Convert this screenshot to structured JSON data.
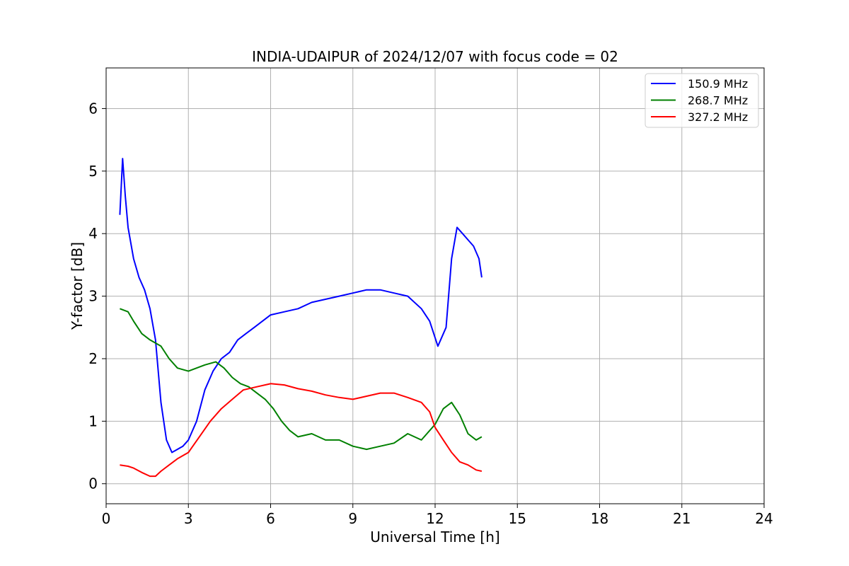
{
  "chart_data": {
    "type": "line",
    "title": "INDIA-UDAIPUR of 2024/12/07 with focus code = 02",
    "xlabel": "Universal Time [h]",
    "ylabel": "Y-factor [dB]",
    "xlim": [
      0,
      24
    ],
    "ylim": [
      -0.32,
      6.65
    ],
    "xticks": [
      "0",
      "3",
      "6",
      "9",
      "12",
      "15",
      "18",
      "21",
      "24"
    ],
    "yticks": [
      "0",
      "1",
      "2",
      "3",
      "4",
      "5",
      "6"
    ],
    "grid": true,
    "legend_position": "top-right",
    "series": [
      {
        "name": "150.9 MHz",
        "color": "#0000ff",
        "x": [
          0.5,
          0.6,
          0.7,
          0.8,
          1.0,
          1.2,
          1.4,
          1.6,
          1.8,
          2.0,
          2.2,
          2.4,
          2.6,
          2.8,
          3.0,
          3.3,
          3.6,
          3.9,
          4.2,
          4.5,
          4.8,
          5.1,
          5.4,
          5.7,
          6.0,
          6.5,
          7.0,
          7.5,
          8.0,
          8.5,
          9.0,
          9.5,
          10.0,
          10.5,
          11.0,
          11.5,
          11.8,
          12.1,
          12.4,
          12.6,
          12.8,
          13.0,
          13.2,
          13.4,
          13.6,
          13.7
        ],
        "y": [
          4.3,
          5.2,
          4.6,
          4.1,
          3.6,
          3.3,
          3.1,
          2.8,
          2.3,
          1.3,
          0.7,
          0.5,
          0.55,
          0.6,
          0.7,
          1.0,
          1.5,
          1.8,
          2.0,
          2.1,
          2.3,
          2.4,
          2.5,
          2.6,
          2.7,
          2.75,
          2.8,
          2.9,
          2.95,
          3.0,
          3.05,
          3.1,
          3.1,
          3.05,
          3.0,
          2.8,
          2.6,
          2.2,
          2.5,
          3.6,
          4.1,
          4.0,
          3.9,
          3.8,
          3.6,
          3.3
        ]
      },
      {
        "name": "268.7 MHz",
        "color": "#008000",
        "x": [
          0.5,
          0.8,
          1.0,
          1.3,
          1.6,
          2.0,
          2.3,
          2.6,
          3.0,
          3.3,
          3.6,
          4.0,
          4.3,
          4.6,
          4.9,
          5.2,
          5.5,
          5.8,
          6.1,
          6.4,
          6.7,
          7.0,
          7.5,
          8.0,
          8.5,
          9.0,
          9.5,
          10.0,
          10.5,
          11.0,
          11.5,
          12.0,
          12.3,
          12.6,
          12.9,
          13.2,
          13.5,
          13.7
        ],
        "y": [
          2.8,
          2.75,
          2.6,
          2.4,
          2.3,
          2.2,
          2.0,
          1.85,
          1.8,
          1.85,
          1.9,
          1.95,
          1.85,
          1.7,
          1.6,
          1.55,
          1.45,
          1.35,
          1.2,
          1.0,
          0.85,
          0.75,
          0.8,
          0.7,
          0.7,
          0.6,
          0.55,
          0.6,
          0.65,
          0.8,
          0.7,
          0.95,
          1.2,
          1.3,
          1.1,
          0.8,
          0.7,
          0.75
        ]
      },
      {
        "name": "327.2 MHz",
        "color": "#ff0000",
        "x": [
          0.5,
          0.8,
          1.0,
          1.3,
          1.6,
          1.8,
          2.0,
          2.3,
          2.6,
          3.0,
          3.4,
          3.8,
          4.2,
          4.6,
          5.0,
          5.5,
          6.0,
          6.5,
          7.0,
          7.5,
          8.0,
          8.5,
          9.0,
          9.5,
          10.0,
          10.5,
          11.0,
          11.5,
          11.8,
          12.0,
          12.3,
          12.6,
          12.9,
          13.2,
          13.5,
          13.7
        ],
        "y": [
          0.3,
          0.28,
          0.25,
          0.18,
          0.12,
          0.12,
          0.2,
          0.3,
          0.4,
          0.5,
          0.75,
          1.0,
          1.2,
          1.35,
          1.5,
          1.55,
          1.6,
          1.58,
          1.52,
          1.48,
          1.42,
          1.38,
          1.35,
          1.4,
          1.45,
          1.45,
          1.38,
          1.3,
          1.15,
          0.9,
          0.7,
          0.5,
          0.35,
          0.3,
          0.22,
          0.2
        ]
      }
    ]
  }
}
